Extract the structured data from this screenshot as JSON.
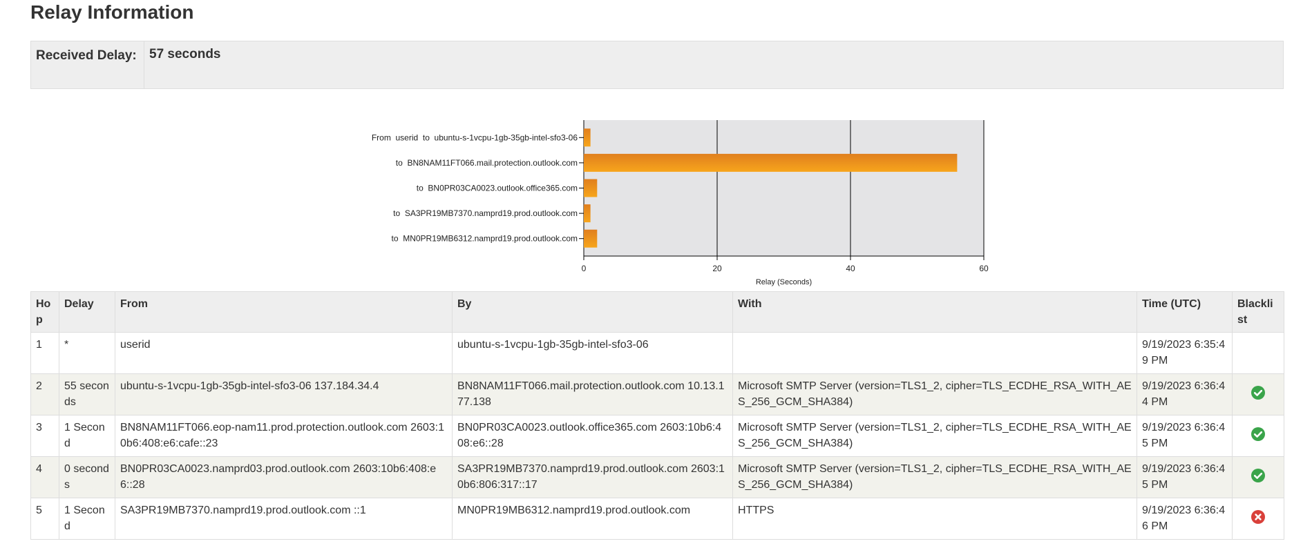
{
  "heading": "Relay Information",
  "received_delay": {
    "label": "Received Delay:",
    "value": "57 seconds"
  },
  "chart_data": {
    "type": "bar",
    "orientation": "horizontal",
    "categories": [
      "From  userid  to  ubuntu-s-1vcpu-1gb-35gb-intel-sfo3-06",
      "to  BN8NAM11FT066.mail.protection.outlook.com",
      "to  BN0PR03CA0023.outlook.office365.com",
      "to  SA3PR19MB7370.namprd19.prod.outlook.com",
      "to  MN0PR19MB6312.namprd19.prod.outlook.com"
    ],
    "values": [
      1,
      56,
      2,
      1,
      2
    ],
    "xlabel": "Relay (Seconds)",
    "xlim": [
      0,
      60
    ],
    "xticks": [
      0,
      20,
      40,
      60
    ],
    "grid": true,
    "colors": {
      "bar": "#f29a1e",
      "bar_top": "#e07f1e",
      "plot_bg": "#e4e4e6",
      "grid": "#000000"
    }
  },
  "table": {
    "headers": [
      "Hop",
      "Delay",
      "From",
      "By",
      "With",
      "Time (UTC)",
      "Blacklist"
    ],
    "rows": [
      {
        "hop": "1",
        "delay": "*",
        "from": "userid",
        "by": "ubuntu-s-1vcpu-1gb-35gb-intel-sfo3-06",
        "with": "",
        "time": "9/19/2023 6:35:49 PM",
        "blacklist": ""
      },
      {
        "hop": "2",
        "delay": "55 seconds",
        "from": "ubuntu-s-1vcpu-1gb-35gb-intel-sfo3-06 137.184.34.4",
        "by": "BN8NAM11FT066.mail.protection.outlook.com 10.13.177.138",
        "with": "Microsoft SMTP Server (version=TLS1_2, cipher=TLS_ECDHE_RSA_WITH_AES_256_GCM_SHA384)",
        "time": "9/19/2023 6:36:44 PM",
        "blacklist": "ok"
      },
      {
        "hop": "3",
        "delay": "1 Second",
        "from": "BN8NAM11FT066.eop-nam11.prod.protection.outlook.com 2603:10b6:408:e6:cafe::23",
        "by": "BN0PR03CA0023.outlook.office365.com 2603:10b6:408:e6::28",
        "with": "Microsoft SMTP Server (version=TLS1_2, cipher=TLS_ECDHE_RSA_WITH_AES_256_GCM_SHA384)",
        "time": "9/19/2023 6:36:45 PM",
        "blacklist": "ok"
      },
      {
        "hop": "4",
        "delay": "0 seconds",
        "from": "BN0PR03CA0023.namprd03.prod.outlook.com 2603:10b6:408:e6::28",
        "by": "SA3PR19MB7370.namprd19.prod.outlook.com 2603:10b6:806:317::17",
        "with": "Microsoft SMTP Server (version=TLS1_2, cipher=TLS_ECDHE_RSA_WITH_AES_256_GCM_SHA384)",
        "time": "9/19/2023 6:36:45 PM",
        "blacklist": "ok"
      },
      {
        "hop": "5",
        "delay": "1 Second",
        "from": "SA3PR19MB7370.namprd19.prod.outlook.com ::1",
        "by": "MN0PR19MB6312.namprd19.prod.outlook.com",
        "with": "HTTPS",
        "time": "9/19/2023 6:36:46 PM",
        "blacklist": "error"
      }
    ]
  },
  "status_icons": {
    "ok": {
      "name": "check-circle-icon",
      "color": "#3aa44a"
    },
    "error": {
      "name": "x-circle-icon",
      "color": "#d9403a"
    }
  }
}
